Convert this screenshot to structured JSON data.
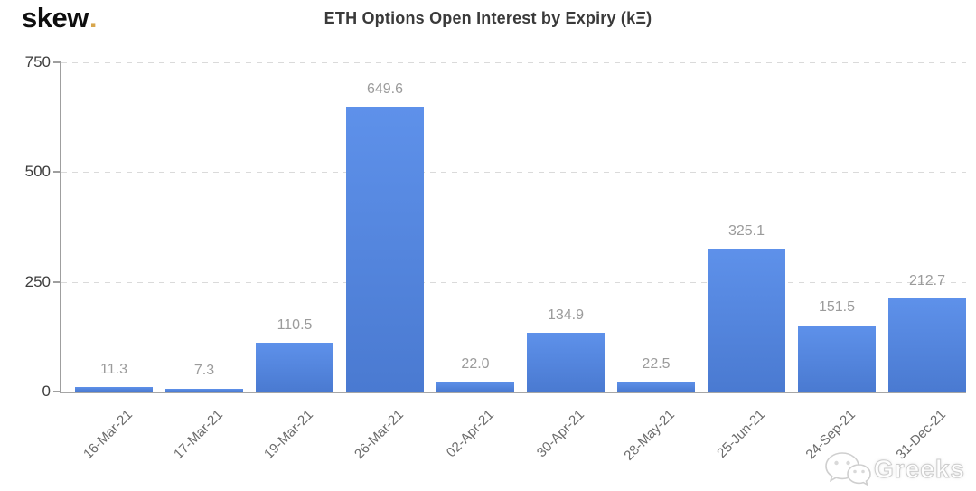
{
  "logo": {
    "text": "skew",
    "dot": "."
  },
  "chart_data": {
    "type": "bar",
    "title": "ETH Options Open Interest by Expiry (kΞ)",
    "categories": [
      "16-Mar-21",
      "17-Mar-21",
      "19-Mar-21",
      "26-Mar-21",
      "02-Apr-21",
      "30-Apr-21",
      "28-May-21",
      "25-Jun-21",
      "24-Sep-21",
      "31-Dec-21"
    ],
    "values": [
      11.3,
      7.3,
      110.5,
      649.6,
      22.0,
      134.9,
      22.5,
      325.1,
      151.5,
      212.7
    ],
    "value_labels": [
      "11.3",
      "7.3",
      "110.5",
      "649.6",
      "22.0",
      "134.9",
      "22.5",
      "325.1",
      "151.5",
      "212.7"
    ],
    "xlabel": "",
    "ylabel": "",
    "ylim": [
      0,
      750
    ],
    "yticks": [
      0,
      250,
      500,
      750
    ],
    "ytick_labels_top_to_bottom": [
      "750",
      "500",
      "250",
      "0"
    ],
    "grid": "horizontal-dashed",
    "legend": "none",
    "bar_color_top": "#5e91ea",
    "bar_color_bottom": "#4a7ad1",
    "value_label_color": "#9b9b9b",
    "axis_color": "#9f9f9f"
  },
  "watermark": {
    "icon": "wechat-icon",
    "text": "Greeks"
  }
}
